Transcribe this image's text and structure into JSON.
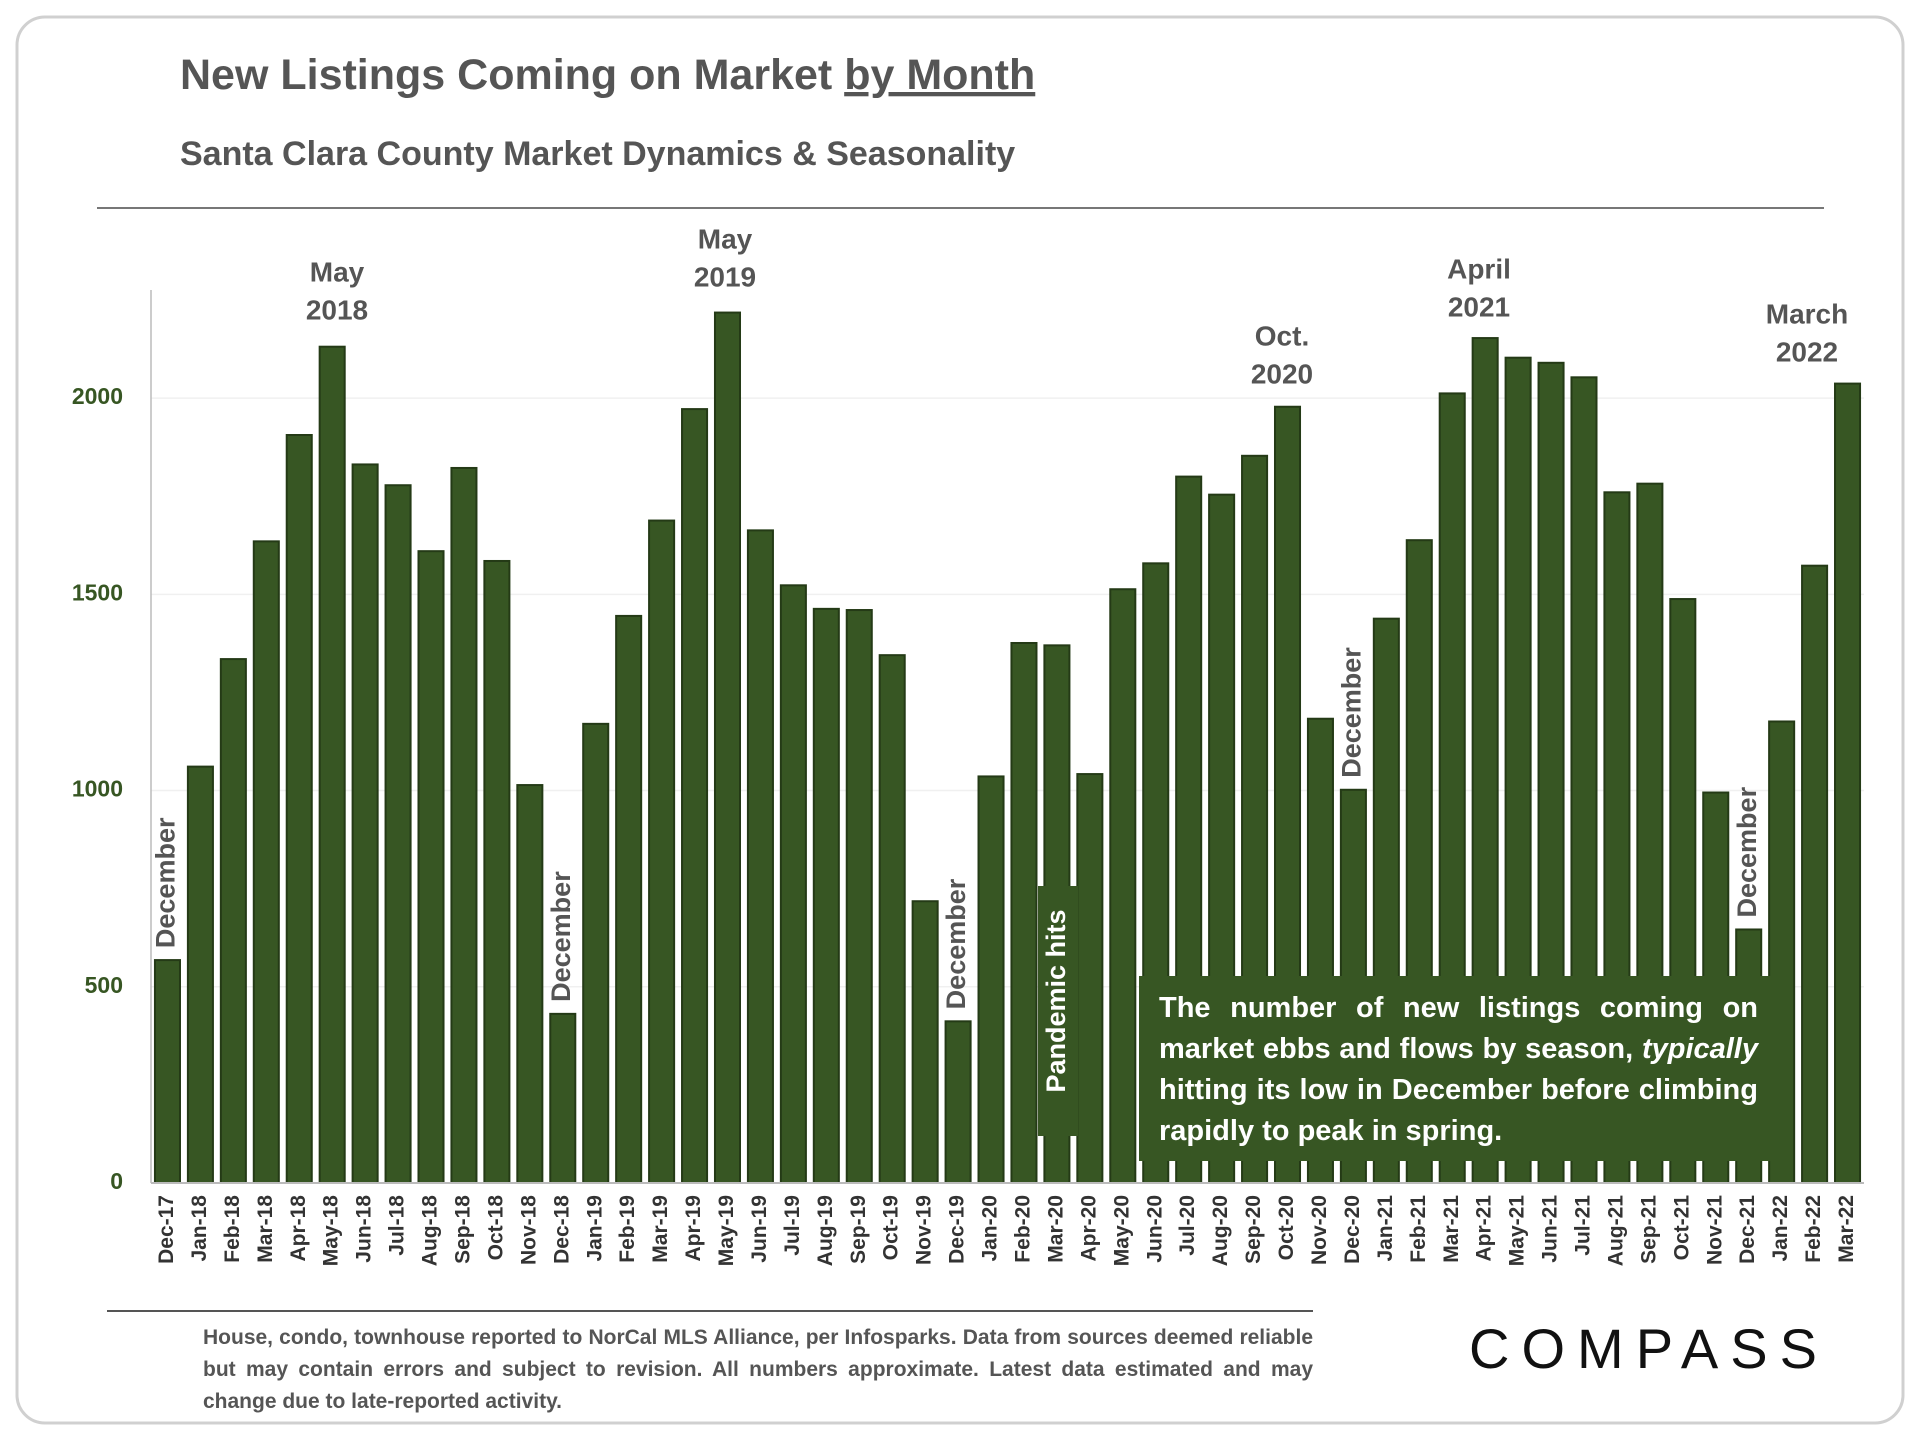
{
  "chart_data": {
    "type": "bar",
    "title": "New Listings Coming on Market",
    "title_emphasis": "by Month",
    "subtitle": "Santa Clara County Market Dynamics & Seasonality",
    "categories": [
      "Dec-17",
      "Jan-18",
      "Feb-18",
      "Mar-18",
      "Apr-18",
      "May-18",
      "Jun-18",
      "Jul-18",
      "Aug-18",
      "Sep-18",
      "Oct-18",
      "Nov-18",
      "Dec-18",
      "Jan-19",
      "Feb-19",
      "Mar-19",
      "Apr-19",
      "May-19",
      "Jun-19",
      "Jul-19",
      "Aug-19",
      "Sep-19",
      "Oct-19",
      "Nov-19",
      "Dec-19",
      "Jan-20",
      "Feb-20",
      "Mar-20",
      "Apr-20",
      "May-20",
      "Jun-20",
      "Jul-20",
      "Aug-20",
      "Sep-20",
      "Oct-20",
      "Nov-20",
      "Dec-20",
      "Jan-21",
      "Feb-21",
      "Mar-21",
      "Apr-21",
      "May-21",
      "Jun-21",
      "Jul-21",
      "Aug-21",
      "Sep-21",
      "Oct-21",
      "Nov-21",
      "Dec-21",
      "Jan-22",
      "Feb-22",
      "Mar-22"
    ],
    "values": [
      568,
      1061,
      1335,
      1635,
      1906,
      2131,
      1831,
      1778,
      1610,
      1822,
      1585,
      1014,
      431,
      1170,
      1445,
      1688,
      1972,
      2218,
      1663,
      1523,
      1463,
      1460,
      1345,
      718,
      412,
      1036,
      1376,
      1370,
      1042,
      1513,
      1579,
      1800,
      1754,
      1853,
      1978,
      1183,
      1002,
      1438,
      1638,
      2012,
      2153,
      2103,
      2090,
      2053,
      1760,
      1782,
      1488,
      995,
      646,
      1176,
      1573,
      2037
    ],
    "color": "#375623",
    "ylim": [
      0,
      2250
    ],
    "yticks": [
      0,
      500,
      1000,
      1500,
      2000
    ],
    "grid": true,
    "peak_annotations": [
      [
        "May",
        "2018"
      ],
      [
        "May",
        "2019"
      ],
      [
        "Oct.",
        "2020"
      ],
      [
        "April",
        "2021"
      ],
      [
        "March",
        "2022"
      ]
    ],
    "december_label": "December",
    "pandemic_label": "Pandemic hits",
    "callout": [
      "The number of new listings coming on market ebbs and flows by season, ",
      "typically",
      " hitting its low in December before climbing rapidly to peak in spring."
    ],
    "footnote": "House, condo, townhouse reported to NorCal MLS Alliance, per Infosparks. Data from sources deemed reliable but may contain errors and subject to revision. All numbers approximate. Latest data estimated and may change due to late-reported activity.",
    "logo": "COMPASS"
  }
}
